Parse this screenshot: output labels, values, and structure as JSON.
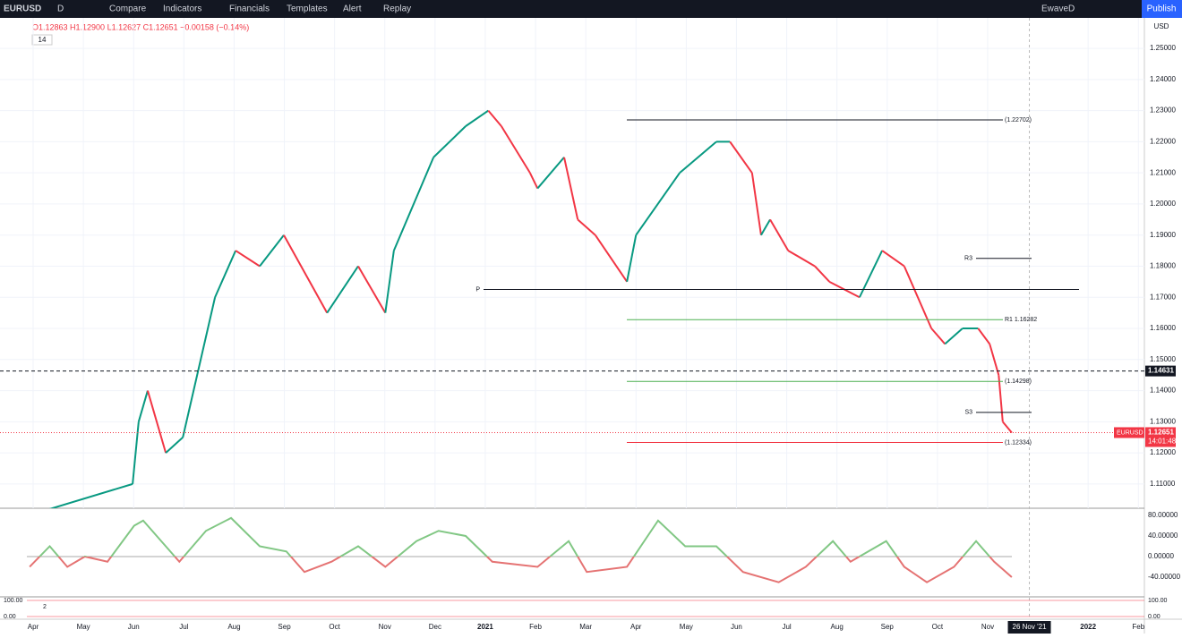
{
  "toolbar": {
    "symbol": "EURUSD",
    "interval": "D",
    "items": [
      "Compare",
      "Indicators",
      "Financials",
      "Templates",
      "Alert",
      "Replay"
    ],
    "layout": "EwaveD",
    "publish": "Publish"
  },
  "legend": {
    "ohlc": "O1.12863 H1.12900 L1.12627 C1.12651 −0.00158 (−0.14%)",
    "indicator": "14"
  },
  "currency": "USD",
  "chart_data": {
    "type": "line",
    "xlim": [
      -0.66,
      22.12
    ],
    "xticks": [
      {
        "value": 0,
        "label": "Apr"
      },
      {
        "value": 1,
        "label": "May"
      },
      {
        "value": 2,
        "label": "Jun"
      },
      {
        "value": 3,
        "label": "Jul"
      },
      {
        "value": 4,
        "label": "Aug"
      },
      {
        "value": 5,
        "label": "Sep"
      },
      {
        "value": 6,
        "label": "Oct"
      },
      {
        "value": 7,
        "label": "Nov"
      },
      {
        "value": 8,
        "label": "Dec"
      },
      {
        "value": 9,
        "label": "2021"
      },
      {
        "value": 10,
        "label": "Feb"
      },
      {
        "value": 11,
        "label": "Mar"
      },
      {
        "value": 12,
        "label": "Apr"
      },
      {
        "value": 13,
        "label": "May"
      },
      {
        "value": 14,
        "label": "Jun"
      },
      {
        "value": 15,
        "label": "Jul"
      },
      {
        "value": 16,
        "label": "Aug"
      },
      {
        "value": 17,
        "label": "Sep"
      },
      {
        "value": 18,
        "label": "Oct"
      },
      {
        "value": 19,
        "label": "Nov"
      },
      {
        "value": 21,
        "label": "2022"
      },
      {
        "value": 22,
        "label": "Feb"
      }
    ],
    "cursor": {
      "value": 19.83,
      "label": "26 Nov '21"
    },
    "ylim": [
      1.1022,
      1.2598
    ],
    "yticks": [
      {
        "value": 1.25,
        "label": "1.25000"
      },
      {
        "value": 1.24,
        "label": "1.24000"
      },
      {
        "value": 1.23,
        "label": "1.23000"
      },
      {
        "value": 1.22,
        "label": "1.22000"
      },
      {
        "value": 1.21,
        "label": "1.21000"
      },
      {
        "value": 1.2,
        "label": "1.20000"
      },
      {
        "value": 1.19,
        "label": "1.19000"
      },
      {
        "value": 1.18,
        "label": "1.18000"
      },
      {
        "value": 1.17,
        "label": "1.17000"
      },
      {
        "value": 1.16,
        "label": "1.16000"
      },
      {
        "value": 1.15,
        "label": "1.15000"
      },
      {
        "value": 1.14,
        "label": "1.14000"
      },
      {
        "value": 1.13,
        "label": "1.13000"
      },
      {
        "value": 1.12,
        "label": "1.12000"
      },
      {
        "value": 1.11,
        "label": "1.11000"
      }
    ],
    "series": [
      {
        "name": "EURUSD",
        "color": "#089981",
        "down_color": "#f23645",
        "x": [
          -0.07,
          1.98,
          2.1,
          2.28,
          2.64,
          2.98,
          3.62,
          4.03,
          4.51,
          4.99,
          5.85,
          6.47,
          7.01,
          7.18,
          7.97,
          8.61,
          9.06,
          9.32,
          9.89,
          10.04,
          10.57,
          10.84,
          11.19,
          11.82,
          12.0,
          12.87,
          13.6,
          13.87,
          14.31,
          14.49,
          14.67,
          15.03,
          15.56,
          15.85,
          16.45,
          16.9,
          17.34,
          17.88,
          18.15,
          18.5,
          18.81,
          19.04,
          19.22,
          19.3,
          19.48
        ],
        "values": [
          1.1,
          1.11,
          1.13,
          1.14,
          1.12,
          1.125,
          1.17,
          1.185,
          1.18,
          1.19,
          1.165,
          1.18,
          1.165,
          1.185,
          1.215,
          1.225,
          1.23,
          1.225,
          1.21,
          1.205,
          1.215,
          1.195,
          1.19,
          1.175,
          1.19,
          1.21,
          1.22,
          1.22,
          1.21,
          1.19,
          1.195,
          1.185,
          1.18,
          1.175,
          1.17,
          1.185,
          1.18,
          1.16,
          1.155,
          1.16,
          1.16,
          1.155,
          1.145,
          1.13,
          1.12651
        ]
      }
    ],
    "levels": [
      {
        "label": "(1.22702)",
        "value": 1.22702,
        "color": "#131722"
      },
      {
        "label": "P",
        "value": 1.1725,
        "color": "#131722"
      },
      {
        "label": "R3",
        "value": 1.1825,
        "color": "#131722"
      },
      {
        "label": "R1 1.16282",
        "value": 1.16282,
        "color": "#4caf50"
      },
      {
        "label": "(1.14298)",
        "value": 1.14298,
        "color": "#4caf50"
      },
      {
        "label": "S3",
        "value": 1.133,
        "color": "#131722"
      },
      {
        "label": "(1.12334)",
        "value": 1.12334,
        "color": "#f23645"
      }
    ],
    "price_tags": [
      {
        "label": "1.14631",
        "value": 1.14631
      },
      {
        "symbol": "EURUSD",
        "label": "1.12651",
        "value": 1.12651,
        "countdown": "14:01:48"
      }
    ],
    "oscillator": {
      "ylim": [
        -78.3,
        93.9
      ],
      "yticks": [
        {
          "value": 80,
          "label": "80.00000"
        },
        {
          "value": 40,
          "label": "40.00000"
        },
        {
          "value": 0,
          "label": "0.00000"
        },
        {
          "value": -40,
          "label": "-40.00000"
        }
      ],
      "x": [
        -0.07,
        0.33,
        0.68,
        1.03,
        1.48,
        2.01,
        2.19,
        2.64,
        2.91,
        3.44,
        3.94,
        4.51,
        5.04,
        5.4,
        5.94,
        6.47,
        7.01,
        7.63,
        8.07,
        8.61,
        9.14,
        10.04,
        10.66,
        11.02,
        11.82,
        12.44,
        12.98,
        13.6,
        14.13,
        14.84,
        15.38,
        15.92,
        16.27,
        16.98,
        17.34,
        17.79,
        18.33,
        18.77,
        19.13,
        19.48
      ],
      "values": [
        -20,
        20,
        -20,
        0,
        -10,
        60,
        70,
        20,
        -10,
        50,
        75,
        20,
        10,
        -30,
        -10,
        20,
        -20,
        30,
        50,
        40,
        -10,
        -20,
        30,
        -30,
        -20,
        70,
        20,
        20,
        -30,
        -50,
        -20,
        30,
        -10,
        30,
        -20,
        -50,
        -20,
        30,
        -10,
        -40
      ]
    },
    "lower": {
      "yticks": [
        {
          "value": 100,
          "label": "100.00"
        },
        {
          "value": 0,
          "label": "0.00"
        }
      ],
      "indicator": "2"
    }
  }
}
